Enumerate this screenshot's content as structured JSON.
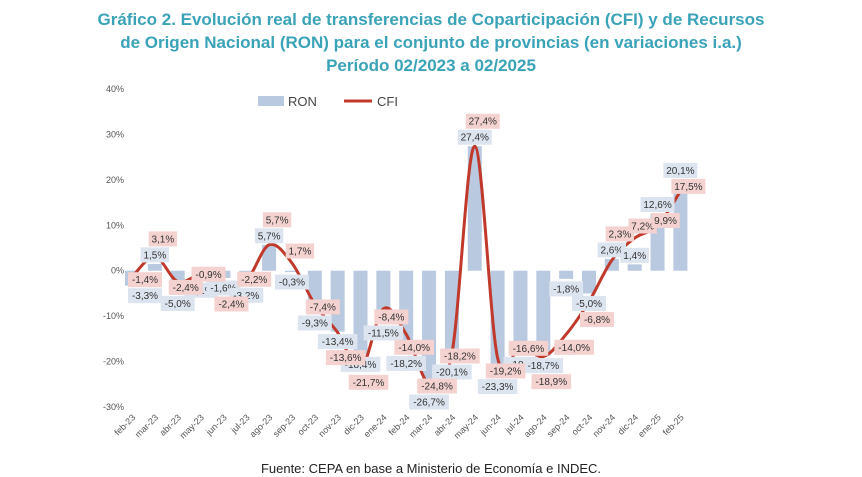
{
  "title_lines": [
    "Gráfico 2. Evolución real de transferencias de Coparticipación (CFI) y de Recursos",
    "de Origen Nacional (RON) para el conjunto de provincias (en variaciones i.a.)",
    "Período 02/2023 a 02/2025"
  ],
  "source": "Fuente: CEPA en base a Ministerio de Economía e INDEC.",
  "colors": {
    "ron": "#b8c9e0",
    "cfi": "#c0392b",
    "ron_label_bg": "#dce4ef",
    "cfi_label_bg": "#f3d2d0",
    "title": "#3aa3b8"
  },
  "chart_data": {
    "type": "bar",
    "categories": [
      "feb-23",
      "mar-23",
      "abr-23",
      "may-23",
      "jun-23",
      "jul-23",
      "ago-23",
      "sep-23",
      "oct-23",
      "nov-23",
      "dic-23",
      "ene-24",
      "feb-24",
      "mar-24",
      "abr-24",
      "may-24",
      "jun-24",
      "jul-24",
      "ago-24",
      "sep-24",
      "oct-24",
      "nov-24",
      "dic-24",
      "ene-25",
      "feb-25"
    ],
    "series": [
      {
        "name": "RON",
        "kind": "bar",
        "values": [
          -3.3,
          1.5,
          -5.0,
          -2.1,
          -1.6,
          -3.2,
          5.7,
          -0.3,
          -9.3,
          -13.4,
          -18.4,
          -11.5,
          -18.2,
          -26.7,
          -20.1,
          27.4,
          -23.3,
          -18.4,
          -18.7,
          -1.8,
          -5.0,
          2.6,
          1.4,
          12.6,
          20.1
        ],
        "labels": [
          "-3,3%",
          "1,5%",
          "-5,0%",
          "-2,1%",
          "-1,6%",
          "-3,2%",
          "5,7%",
          "-0,3%",
          "-9,3%",
          "-13,4%",
          "-18,4%",
          "-11,5%",
          "-18,2%",
          "-26,7%",
          "-20,1%",
          "27,4%",
          "-23,3%",
          "-18,4",
          "-18,7%",
          "-1,8%",
          "-5,0%",
          "2,6%",
          "1,4%",
          "12,6%",
          "20,1%"
        ]
      },
      {
        "name": "CFI",
        "kind": "line",
        "values": [
          -1.4,
          3.1,
          -2.4,
          -0.9,
          -2.4,
          -2.2,
          5.7,
          1.7,
          -7.4,
          -13.6,
          -21.7,
          -8.4,
          -14.0,
          -24.8,
          -18.2,
          27.4,
          -19.2,
          -16.6,
          -18.9,
          -14.0,
          -6.8,
          2.3,
          7.2,
          9.9,
          17.5
        ],
        "labels": [
          "-1,4%",
          "3,1%",
          "-2,4%",
          "-0,9%",
          "-2,4%",
          "-2,2%",
          "5,7%",
          "1,7%",
          "-7,4%",
          "-13,6%",
          "-21,7%",
          "-8,4%",
          "-14,0%",
          "-24,8%",
          "-18,2%",
          "27,4%",
          "-19,2%",
          "-16,6%",
          "-18,9%",
          "-14,0%",
          "-6,8%",
          "2,3%",
          "7,2%",
          "9,9%",
          "17,5%"
        ]
      }
    ],
    "yticks": [
      "40%",
      "30%",
      "20%",
      "10%",
      "0%",
      "-10%",
      "-20%",
      "-30%"
    ],
    "ylim": [
      -30,
      40
    ],
    "legend": "top-left"
  }
}
